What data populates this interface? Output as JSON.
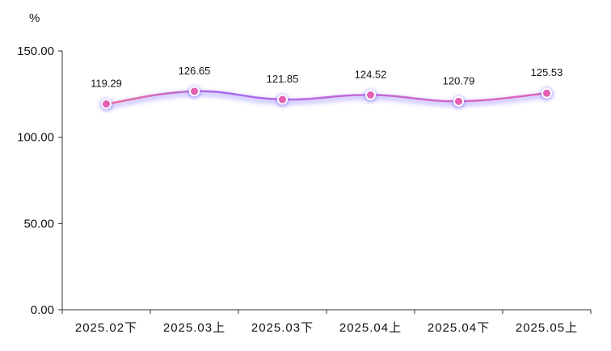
{
  "chart_data": {
    "type": "line",
    "unit_label": "%",
    "categories": [
      "2025.02下",
      "2025.03上",
      "2025.03下",
      "2025.04上",
      "2025.04下",
      "2025.05上"
    ],
    "series": [
      {
        "values": [
          119.29,
          126.65,
          121.85,
          124.52,
          120.79,
          125.53
        ]
      }
    ],
    "data_labels": [
      "119.29",
      "126.65",
      "121.85",
      "124.52",
      "120.79",
      "125.53"
    ],
    "y_ticks": [
      "0.00",
      "50.00",
      "100.00",
      "150.00"
    ],
    "y_tick_values": [
      0,
      50,
      100,
      150
    ],
    "ylim": [
      0,
      150
    ],
    "grid": false,
    "smooth": true,
    "colors": {
      "line_start": "#f06b8f",
      "line_mid": "#a86cf0",
      "line_end": "#e366b8",
      "glow": "#8a7cff",
      "marker_fill": "#e35fb0",
      "marker_stroke": "#ffffff",
      "axis": "#333333"
    }
  }
}
